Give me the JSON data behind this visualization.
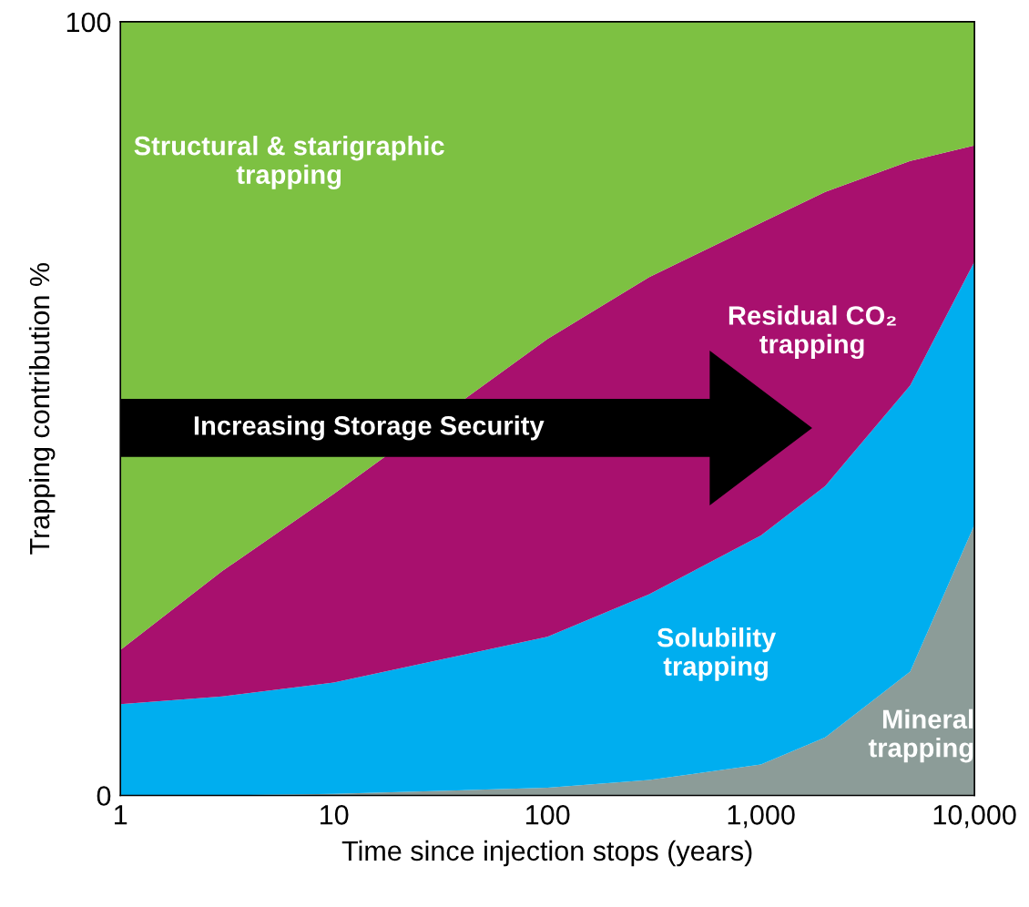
{
  "chart_data": {
    "type": "area",
    "stacked": true,
    "xlabel": "Time since injection stops (years)",
    "ylabel": "Trapping contribution %",
    "x": [
      1,
      3,
      10,
      100,
      300,
      1000,
      2000,
      5000,
      10000
    ],
    "series": [
      {
        "name": "Mineral trapping",
        "color": "#8c9c98",
        "values": [
          0,
          0,
          0.2,
          1,
          2,
          4,
          7.5,
          16,
          35
        ]
      },
      {
        "name": "Solubility trapping",
        "color": "#00aeef",
        "values": [
          11.8,
          12.8,
          14.4,
          19.5,
          24,
          29.6,
          32.5,
          37,
          34
        ]
      },
      {
        "name": "Residual CO₂ trapping",
        "color": "#a8106e",
        "values": [
          7,
          16.2,
          24.4,
          38.5,
          41,
          40.4,
          38,
          29,
          15
        ]
      },
      {
        "name": "Structural & starigraphic trapping",
        "color": "#7dc142",
        "values": [
          81.2,
          71,
          61,
          41,
          33,
          26,
          22,
          18,
          16
        ]
      }
    ],
    "log": "x",
    "xlim": [
      1,
      10000
    ],
    "ylim": [
      0,
      100
    ],
    "xticks": [
      1,
      10,
      100,
      {
        "value": 1000,
        "label": "1,000"
      },
      {
        "value": 10000,
        "label": "10,000"
      }
    ],
    "yticks": [
      0,
      100
    ],
    "grid": false,
    "legend": false,
    "annotations": [
      "Increasing Storage Security"
    ]
  }
}
